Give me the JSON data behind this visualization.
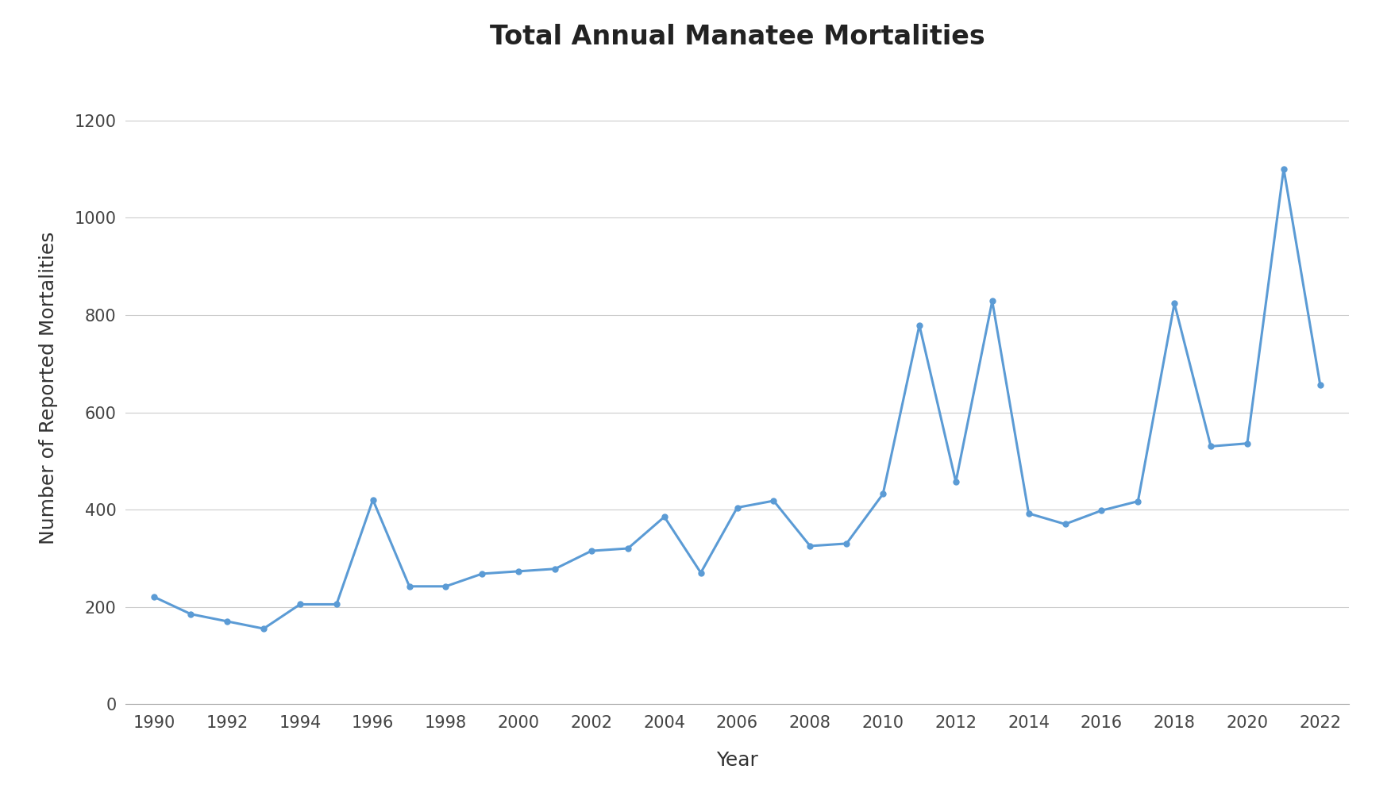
{
  "years": [
    1990,
    1991,
    1992,
    1993,
    1994,
    1995,
    1996,
    1997,
    1998,
    1999,
    2000,
    2001,
    2002,
    2003,
    2004,
    2005,
    2006,
    2007,
    2008,
    2009,
    2010,
    2011,
    2012,
    2013,
    2014,
    2015,
    2016,
    2017,
    2018,
    2019,
    2020,
    2021,
    2022
  ],
  "values": [
    220,
    185,
    170,
    155,
    205,
    205,
    420,
    242,
    242,
    268,
    273,
    278,
    315,
    320,
    385,
    270,
    404,
    418,
    325,
    330,
    432,
    779,
    457,
    829,
    392,
    370,
    398,
    417,
    824,
    530,
    536,
    1101,
    657
  ],
  "title": "Total Annual Manatee Mortalities",
  "xlabel": "Year",
  "ylabel": "Number of Reported Mortalities",
  "line_color": "#5B9BD5",
  "marker_color": "#5B9BD5",
  "background_color": "#ffffff",
  "ylim": [
    0,
    1300
  ],
  "yticks": [
    0,
    200,
    400,
    600,
    800,
    1000,
    1200
  ],
  "xticks": [
    1990,
    1992,
    1994,
    1996,
    1998,
    2000,
    2002,
    2004,
    2006,
    2008,
    2010,
    2012,
    2014,
    2016,
    2018,
    2020,
    2022
  ],
  "title_fontsize": 24,
  "axis_label_fontsize": 18,
  "tick_fontsize": 15,
  "line_width": 2.2,
  "marker_size": 5
}
